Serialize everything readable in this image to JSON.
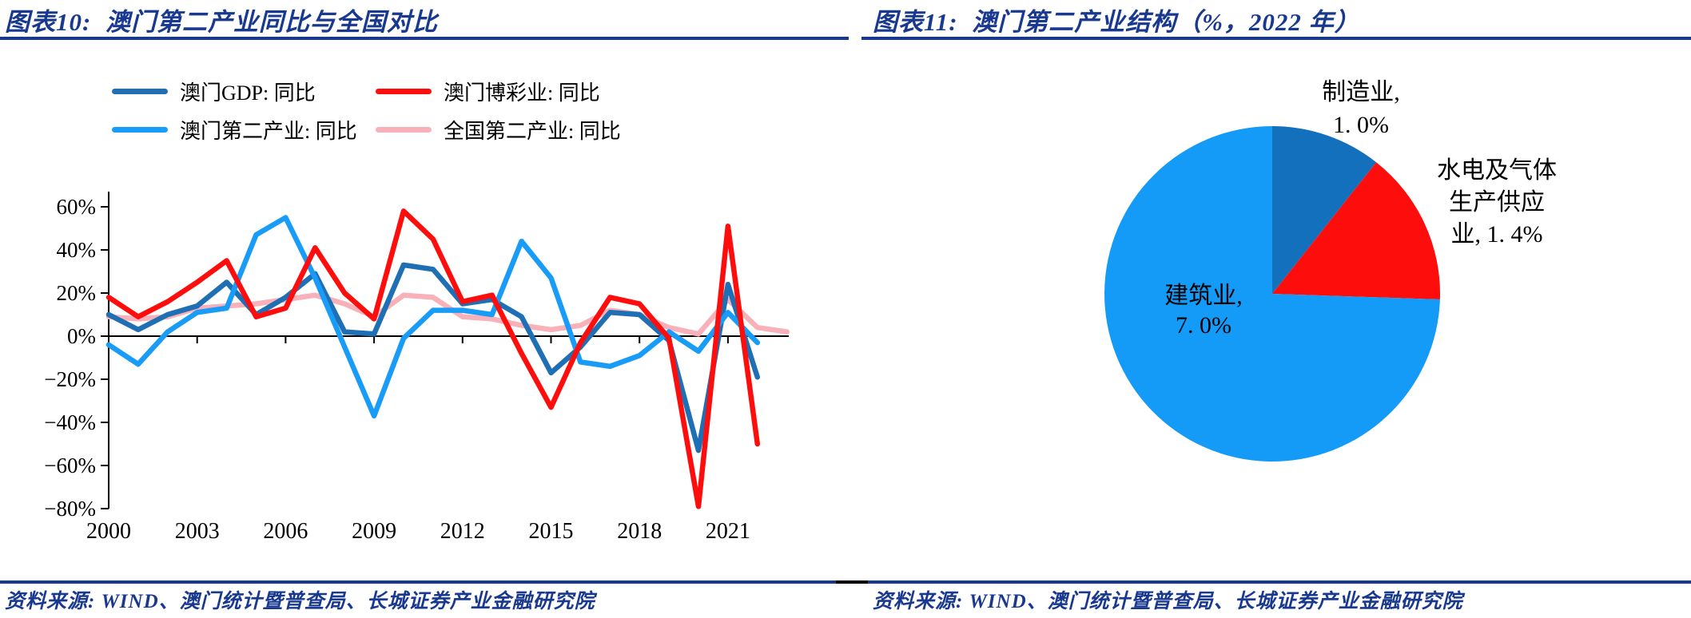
{
  "colors": {
    "navy": "#18398F",
    "black": "#000000",
    "gdp_blue": "#1F6FB5",
    "gaming_red": "#FE0D0D",
    "secondary_blue": "#189CF8",
    "national_pink": "#F9B1B9",
    "pie_manufacturing": "#1270BC",
    "pie_utilities": "#FE0D0D",
    "pie_construction": "#149BF8"
  },
  "panels": {
    "left": {
      "title": "图表10:  澳门第二产业同比与全国对比",
      "source": "资料来源: WIND、澳门统计暨普查局、长城证券产业金融研究院"
    },
    "right": {
      "title": "图表11:  澳门第二产业结构（%，2022 年）",
      "source": "资料来源: WIND、澳门统计暨普查局、长城证券产业金融研究院"
    }
  },
  "chart_data": [
    {
      "type": "line",
      "title": "澳门第二产业同比与全国对比",
      "y_unit": "%",
      "ylim": [
        -80,
        60
      ],
      "y_ticks": [
        60,
        40,
        20,
        0,
        -20,
        -40,
        -60,
        -80
      ],
      "x_tick_labels": [
        "2000",
        "2003",
        "2006",
        "2009",
        "2012",
        "2015",
        "2018",
        "2021"
      ],
      "grid": false,
      "legend_position": "top",
      "x": [
        2000,
        2001,
        2002,
        2003,
        2004,
        2005,
        2006,
        2007,
        2008,
        2009,
        2010,
        2011,
        2012,
        2013,
        2014,
        2015,
        2016,
        2017,
        2018,
        2019,
        2020,
        2021,
        2022,
        2023
      ],
      "series": [
        {
          "id": "macau-gdp",
          "name": "澳门GDP: 同比",
          "color_key": "gdp_blue",
          "values": [
            10,
            3,
            10,
            14,
            25,
            10,
            18,
            29,
            2,
            1,
            33,
            31,
            15,
            17,
            9,
            -17,
            -5,
            11,
            10,
            -2,
            -53,
            24,
            -19,
            null
          ]
        },
        {
          "id": "macau-gaming",
          "name": "澳门博彩业: 同比",
          "color_key": "gaming_red",
          "values": [
            18,
            9,
            16,
            25,
            35,
            9,
            13,
            41,
            20,
            8,
            58,
            45,
            16,
            19,
            -8,
            -33,
            -3,
            18,
            15,
            -1,
            -79,
            51,
            -50,
            null
          ]
        },
        {
          "id": "macau-secondary",
          "name": "澳门第二产业: 同比",
          "color_key": "secondary_blue",
          "values": [
            -4,
            -13,
            2,
            11,
            13,
            47,
            55,
            27,
            -5,
            -37,
            -1,
            12,
            12,
            10,
            44,
            27,
            -12,
            -14,
            -9,
            2,
            -7,
            11,
            -3,
            null
          ]
        },
        {
          "id": "china-secondary",
          "name": "全国第二产业: 同比",
          "color_key": "national_pink",
          "values": [
            9,
            8,
            9,
            13,
            14,
            15,
            17,
            19,
            15,
            9,
            19,
            18,
            9,
            8,
            5,
            3,
            5,
            12,
            10,
            4,
            1,
            17,
            4,
            2
          ]
        }
      ]
    },
    {
      "type": "pie",
      "title": "澳门第二产业结构",
      "unit": "%",
      "year": "2022",
      "slices": [
        {
          "id": "manufacturing",
          "label": "制造业",
          "value": 1.0,
          "label_lines": [
            "制造业,",
            "1. 0%"
          ],
          "color_key": "pie_manufacturing"
        },
        {
          "id": "utilities",
          "label": "水电及气体生产供应业",
          "value": 1.4,
          "label_lines": [
            "水电及气体",
            "生产供应",
            "业, 1. 4%"
          ],
          "color_key": "pie_utilities"
        },
        {
          "id": "construction",
          "label": "建筑业",
          "value": 7.0,
          "label_lines": [
            "建筑业,",
            "7. 0%"
          ],
          "color_key": "pie_construction"
        }
      ]
    }
  ]
}
